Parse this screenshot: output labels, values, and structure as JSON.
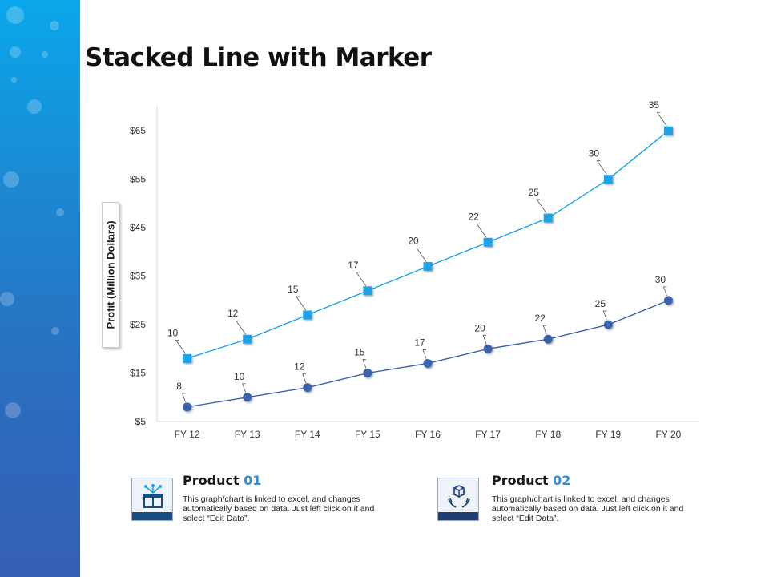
{
  "slide": {
    "title": "Stacked Line with Marker"
  },
  "chart_data": {
    "type": "line",
    "title": "Stacked Line with Marker",
    "xlabel": "",
    "ylabel": "Profit  (Million Dollars)",
    "categories": [
      "FY 12",
      "FY 13",
      "FY 14",
      "FY 15",
      "FY 16",
      "FY 17",
      "FY 18",
      "FY 19",
      "FY 20"
    ],
    "y_ticks": [
      "$5",
      "$15",
      "$25",
      "$35",
      "$45",
      "$55",
      "$65"
    ],
    "ylim": [
      5,
      70
    ],
    "stacked": true,
    "series": [
      {
        "name": "Product 01",
        "values": [
          8,
          10,
          12,
          15,
          17,
          20,
          22,
          25,
          30
        ],
        "marker": "circle",
        "color": "#3a63ad"
      },
      {
        "name": "Product 02",
        "values": [
          10,
          12,
          15,
          17,
          20,
          22,
          25,
          30,
          35
        ],
        "marker": "square",
        "color": "#1aa3e8"
      }
    ]
  },
  "legend": [
    {
      "title": "Product",
      "number": "01",
      "icon": "gift-box-icon",
      "accent": "#1a4c82",
      "description": "This graph/chart is linked to excel, and changes automatically based on data. Just left click on it and select “Edit Data”."
    },
    {
      "title": "Product",
      "number": "02",
      "icon": "box-in-hands-icon",
      "accent": "#1f3f73",
      "description": "This graph/chart is linked to excel, and changes automatically based on data. Just left click on it and select “Edit Data”."
    }
  ]
}
